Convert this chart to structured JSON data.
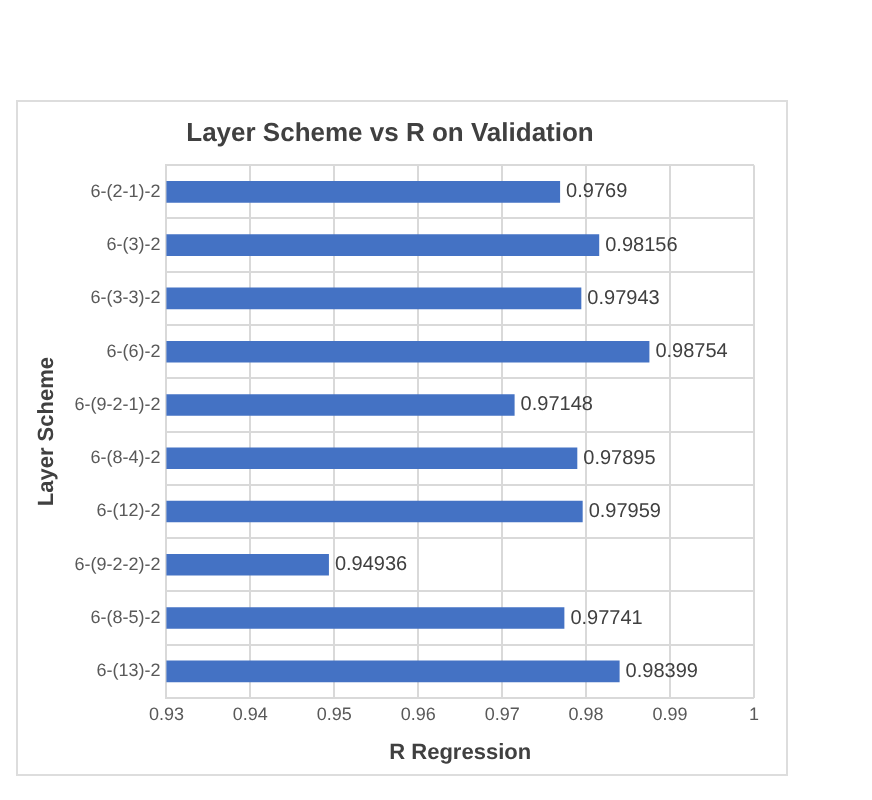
{
  "chart_data": {
    "type": "bar",
    "orientation": "horizontal",
    "title": "Layer Scheme vs R on Validation",
    "xlabel": "R Regression",
    "ylabel": "Layer Scheme",
    "categories": [
      "6-(2-1)-2",
      "6-(3)-2",
      "6-(3-3)-2",
      "6-(6)-2",
      "6-(9-2-1)-2",
      "6-(8-4)-2",
      "6-(12)-2",
      "6-(9-2-2)-2",
      "6-(8-5)-2",
      "6-(13)-2"
    ],
    "values": [
      0.9769,
      0.98156,
      0.97943,
      0.98754,
      0.97148,
      0.97895,
      0.97959,
      0.94936,
      0.97741,
      0.98399
    ],
    "color": "#4472c4",
    "xlim": [
      0.93,
      1
    ],
    "xticks": [
      0.93,
      0.94,
      0.95,
      0.96,
      0.97,
      0.98,
      0.99,
      1
    ],
    "grid": true,
    "data_labels": true
  }
}
